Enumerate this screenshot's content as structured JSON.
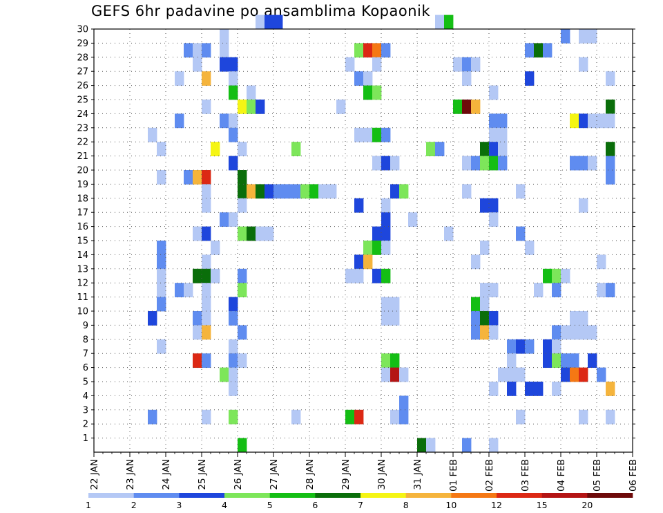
{
  "chart_data": {
    "type": "heatmap",
    "title": "GEFS 6hr padavine po ansamblima Kopaonik",
    "x_tick_labels": [
      "22 JAN",
      "23 JAN",
      "24 JAN",
      "25 JAN",
      "26 JAN",
      "27 JAN",
      "28 JAN",
      "29 JAN",
      "30 JAN",
      "31 JAN",
      "01 FEB",
      "02 FEB",
      "03 FEB",
      "04 FEB",
      "05 FEB",
      "06 FEB"
    ],
    "y_tick_labels": [
      "1",
      "2",
      "3",
      "4",
      "5",
      "6",
      "7",
      "8",
      "9",
      "10",
      "11",
      "12",
      "13",
      "14",
      "15",
      "16",
      "17",
      "18",
      "19",
      "20",
      "21",
      "22",
      "23",
      "24",
      "25",
      "26",
      "27",
      "28",
      "29",
      "30"
    ],
    "time_steps_per_day": 4,
    "n_time_steps": 61,
    "n_members": 30,
    "grid": true,
    "legend": {
      "placement": "bottom",
      "thresholds": [
        "1",
        "2",
        "3",
        "4",
        "5",
        "6",
        "7",
        "8",
        "10",
        "12",
        "15",
        "20"
      ],
      "colors": [
        "#b4c8f5",
        "#5f8cf0",
        "#1e46dc",
        "#7de65a",
        "#14be14",
        "#0a6e0a",
        "#f5f514",
        "#f5b43c",
        "#f57814",
        "#dc2814",
        "#b41414",
        "#6e0a0a"
      ]
    },
    "cells": [
      [
        30,
        18,
        0
      ],
      [
        30,
        19,
        2
      ],
      [
        30,
        20,
        2
      ],
      [
        30,
        38,
        0
      ],
      [
        30,
        39,
        4
      ],
      [
        29,
        14,
        0
      ],
      [
        29,
        52,
        1
      ],
      [
        29,
        54,
        0
      ],
      [
        29,
        55,
        0
      ],
      [
        28,
        10,
        1
      ],
      [
        28,
        11,
        0
      ],
      [
        28,
        12,
        1
      ],
      [
        28,
        14,
        0
      ],
      [
        28,
        29,
        3
      ],
      [
        28,
        30,
        9
      ],
      [
        28,
        31,
        8
      ],
      [
        28,
        32,
        1
      ],
      [
        28,
        48,
        1
      ],
      [
        28,
        49,
        5
      ],
      [
        28,
        50,
        1
      ],
      [
        27,
        11,
        0
      ],
      [
        27,
        14,
        2
      ],
      [
        27,
        15,
        2
      ],
      [
        27,
        28,
        0
      ],
      [
        27,
        31,
        0
      ],
      [
        27,
        40,
        0
      ],
      [
        27,
        41,
        1
      ],
      [
        27,
        42,
        0
      ],
      [
        27,
        54,
        0
      ],
      [
        26,
        9,
        0
      ],
      [
        26,
        12,
        7
      ],
      [
        26,
        15,
        0
      ],
      [
        26,
        29,
        1
      ],
      [
        26,
        30,
        0
      ],
      [
        26,
        41,
        0
      ],
      [
        26,
        48,
        2
      ],
      [
        26,
        57,
        0
      ],
      [
        25,
        15,
        4
      ],
      [
        25,
        17,
        0
      ],
      [
        25,
        30,
        4
      ],
      [
        25,
        31,
        3
      ],
      [
        25,
        44,
        0
      ],
      [
        24,
        12,
        0
      ],
      [
        24,
        16,
        6
      ],
      [
        24,
        17,
        3
      ],
      [
        24,
        18,
        2
      ],
      [
        24,
        27,
        0
      ],
      [
        24,
        40,
        4
      ],
      [
        24,
        41,
        11
      ],
      [
        24,
        42,
        7
      ],
      [
        24,
        57,
        5
      ],
      [
        23,
        9,
        1
      ],
      [
        23,
        14,
        1
      ],
      [
        23,
        15,
        0
      ],
      [
        23,
        44,
        1
      ],
      [
        23,
        45,
        1
      ],
      [
        23,
        53,
        6
      ],
      [
        23,
        54,
        2
      ],
      [
        23,
        55,
        0
      ],
      [
        23,
        56,
        0
      ],
      [
        23,
        57,
        0
      ],
      [
        22,
        6,
        0
      ],
      [
        22,
        15,
        1
      ],
      [
        22,
        29,
        0
      ],
      [
        22,
        30,
        0
      ],
      [
        22,
        31,
        4
      ],
      [
        22,
        32,
        1
      ],
      [
        22,
        44,
        0
      ],
      [
        22,
        45,
        0
      ],
      [
        21,
        7,
        0
      ],
      [
        21,
        13,
        6
      ],
      [
        21,
        16,
        0
      ],
      [
        21,
        22,
        3
      ],
      [
        21,
        37,
        3
      ],
      [
        21,
        38,
        1
      ],
      [
        21,
        43,
        5
      ],
      [
        21,
        44,
        2
      ],
      [
        21,
        45,
        0
      ],
      [
        21,
        57,
        5
      ],
      [
        20,
        15,
        2
      ],
      [
        20,
        31,
        0
      ],
      [
        20,
        32,
        2
      ],
      [
        20,
        33,
        0
      ],
      [
        20,
        41,
        0
      ],
      [
        20,
        42,
        1
      ],
      [
        20,
        43,
        3
      ],
      [
        20,
        44,
        4
      ],
      [
        20,
        45,
        1
      ],
      [
        20,
        53,
        1
      ],
      [
        20,
        54,
        1
      ],
      [
        20,
        55,
        0
      ],
      [
        20,
        57,
        1
      ],
      [
        19,
        7,
        0
      ],
      [
        19,
        10,
        1
      ],
      [
        19,
        11,
        7
      ],
      [
        19,
        12,
        9
      ],
      [
        19,
        16,
        5
      ],
      [
        19,
        57,
        1
      ],
      [
        18,
        12,
        0
      ],
      [
        18,
        16,
        5
      ],
      [
        18,
        17,
        7
      ],
      [
        18,
        18,
        5
      ],
      [
        18,
        19,
        2
      ],
      [
        18,
        20,
        1
      ],
      [
        18,
        21,
        1
      ],
      [
        18,
        22,
        1
      ],
      [
        18,
        23,
        3
      ],
      [
        18,
        24,
        4
      ],
      [
        18,
        25,
        0
      ],
      [
        18,
        26,
        0
      ],
      [
        18,
        33,
        2
      ],
      [
        18,
        34,
        3
      ],
      [
        18,
        41,
        0
      ],
      [
        18,
        47,
        0
      ],
      [
        17,
        12,
        0
      ],
      [
        17,
        16,
        0
      ],
      [
        17,
        29,
        2
      ],
      [
        17,
        32,
        0
      ],
      [
        17,
        43,
        2
      ],
      [
        17,
        44,
        2
      ],
      [
        17,
        54,
        0
      ],
      [
        16,
        14,
        1
      ],
      [
        16,
        15,
        0
      ],
      [
        16,
        32,
        2
      ],
      [
        16,
        35,
        0
      ],
      [
        16,
        44,
        0
      ],
      [
        15,
        11,
        0
      ],
      [
        15,
        12,
        2
      ],
      [
        15,
        16,
        3
      ],
      [
        15,
        17,
        5
      ],
      [
        15,
        18,
        0
      ],
      [
        15,
        19,
        0
      ],
      [
        15,
        31,
        2
      ],
      [
        15,
        32,
        2
      ],
      [
        15,
        39,
        0
      ],
      [
        15,
        47,
        1
      ],
      [
        14,
        7,
        1
      ],
      [
        14,
        13,
        0
      ],
      [
        14,
        30,
        3
      ],
      [
        14,
        31,
        4
      ],
      [
        14,
        32,
        0
      ],
      [
        14,
        43,
        0
      ],
      [
        14,
        48,
        0
      ],
      [
        13,
        7,
        1
      ],
      [
        13,
        12,
        0
      ],
      [
        13,
        29,
        2
      ],
      [
        13,
        30,
        7
      ],
      [
        13,
        42,
        0
      ],
      [
        13,
        56,
        0
      ],
      [
        12,
        7,
        0
      ],
      [
        12,
        11,
        5
      ],
      [
        12,
        12,
        5
      ],
      [
        12,
        13,
        0
      ],
      [
        12,
        16,
        1
      ],
      [
        12,
        28,
        0
      ],
      [
        12,
        29,
        0
      ],
      [
        12,
        31,
        2
      ],
      [
        12,
        32,
        4
      ],
      [
        12,
        50,
        4
      ],
      [
        12,
        51,
        3
      ],
      [
        12,
        52,
        0
      ],
      [
        11,
        7,
        0
      ],
      [
        11,
        9,
        1
      ],
      [
        11,
        10,
        0
      ],
      [
        11,
        12,
        0
      ],
      [
        11,
        16,
        3
      ],
      [
        11,
        43,
        0
      ],
      [
        11,
        44,
        0
      ],
      [
        11,
        49,
        0
      ],
      [
        11,
        51,
        1
      ],
      [
        11,
        56,
        0
      ],
      [
        11,
        57,
        1
      ],
      [
        10,
        7,
        1
      ],
      [
        10,
        12,
        0
      ],
      [
        10,
        15,
        2
      ],
      [
        10,
        32,
        0
      ],
      [
        10,
        33,
        0
      ],
      [
        10,
        42,
        4
      ],
      [
        10,
        43,
        0
      ],
      [
        9,
        6,
        2
      ],
      [
        9,
        11,
        1
      ],
      [
        9,
        12,
        0
      ],
      [
        9,
        15,
        1
      ],
      [
        9,
        32,
        0
      ],
      [
        9,
        33,
        0
      ],
      [
        9,
        42,
        1
      ],
      [
        9,
        43,
        5
      ],
      [
        9,
        44,
        2
      ],
      [
        9,
        53,
        0
      ],
      [
        9,
        54,
        0
      ],
      [
        8,
        11,
        0
      ],
      [
        8,
        12,
        7
      ],
      [
        8,
        16,
        1
      ],
      [
        8,
        42,
        1
      ],
      [
        8,
        43,
        7
      ],
      [
        8,
        44,
        0
      ],
      [
        8,
        51,
        1
      ],
      [
        8,
        52,
        0
      ],
      [
        8,
        53,
        0
      ],
      [
        8,
        54,
        0
      ],
      [
        8,
        55,
        0
      ],
      [
        7,
        7,
        0
      ],
      [
        7,
        15,
        0
      ],
      [
        7,
        46,
        1
      ],
      [
        7,
        47,
        2
      ],
      [
        7,
        48,
        1
      ],
      [
        7,
        50,
        2
      ],
      [
        7,
        51,
        0
      ],
      [
        6,
        11,
        9
      ],
      [
        6,
        12,
        1
      ],
      [
        6,
        15,
        1
      ],
      [
        6,
        16,
        0
      ],
      [
        6,
        32,
        3
      ],
      [
        6,
        33,
        4
      ],
      [
        6,
        46,
        0
      ],
      [
        6,
        50,
        2
      ],
      [
        6,
        51,
        3
      ],
      [
        6,
        52,
        1
      ],
      [
        6,
        53,
        1
      ],
      [
        6,
        55,
        2
      ],
      [
        5,
        14,
        3
      ],
      [
        5,
        15,
        0
      ],
      [
        5,
        32,
        0
      ],
      [
        5,
        33,
        10
      ],
      [
        5,
        34,
        0
      ],
      [
        5,
        45,
        0
      ],
      [
        5,
        46,
        0
      ],
      [
        5,
        47,
        0
      ],
      [
        5,
        52,
        2
      ],
      [
        5,
        53,
        8
      ],
      [
        5,
        54,
        9
      ],
      [
        5,
        56,
        1
      ],
      [
        4,
        15,
        0
      ],
      [
        4,
        44,
        0
      ],
      [
        4,
        46,
        2
      ],
      [
        4,
        48,
        2
      ],
      [
        4,
        49,
        2
      ],
      [
        4,
        51,
        0
      ],
      [
        4,
        57,
        7
      ],
      [
        3,
        34,
        1
      ],
      [
        2,
        6,
        1
      ],
      [
        2,
        12,
        0
      ],
      [
        2,
        15,
        3
      ],
      [
        2,
        22,
        0
      ],
      [
        2,
        28,
        4
      ],
      [
        2,
        29,
        9
      ],
      [
        2,
        33,
        0
      ],
      [
        2,
        34,
        1
      ],
      [
        2,
        47,
        0
      ],
      [
        2,
        54,
        0
      ],
      [
        2,
        57,
        0
      ],
      [
        0,
        16,
        4
      ],
      [
        0,
        36,
        5
      ],
      [
        0,
        37,
        0
      ],
      [
        0,
        41,
        1
      ],
      [
        0,
        44,
        0
      ]
    ]
  }
}
